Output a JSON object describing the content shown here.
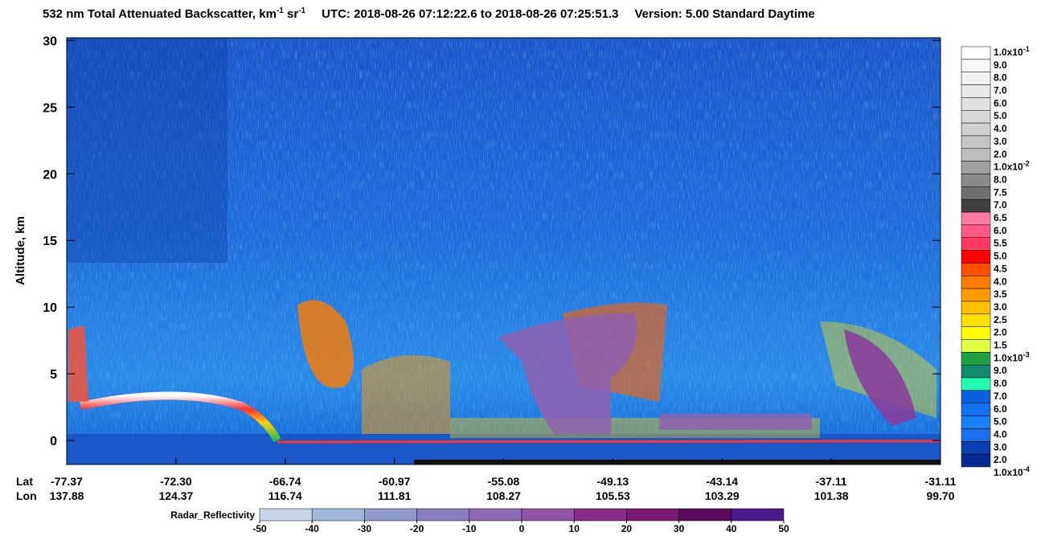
{
  "chart_data": {
    "type": "heatmap",
    "title": {
      "main": "532 nm Total Attenuated Backscatter, km",
      "sup1": "-1",
      "mid": " sr",
      "sup2": "-1",
      "utc": "UTC:  2018-08-26 07:12:22.6  to  2018-08-26 07:25:51.3",
      "version": "Version: 5.00  Standard  Daytime"
    },
    "y_label": "Altitude, km",
    "ylim": [
      -1.8,
      30.2
    ],
    "yticks": [
      0,
      5,
      10,
      15,
      20,
      25,
      30
    ],
    "x_row_labels": [
      "Lat",
      "Lon"
    ],
    "lat": [
      "-77.37",
      "-72.30",
      "-66.74",
      "-60.97",
      "-55.08",
      "-49.13",
      "-43.14",
      "-37.11",
      "-31.11"
    ],
    "lon": [
      "137.88",
      "124.37",
      "116.74",
      "111.81",
      "108.27",
      "105.53",
      "103.29",
      "101.38",
      "99.70"
    ],
    "colorbar": {
      "labels": [
        {
          "text": "1.0x10",
          "sup": "-1"
        },
        {
          "text": "9.0"
        },
        {
          "text": "8.0"
        },
        {
          "text": "7.0"
        },
        {
          "text": "6.0"
        },
        {
          "text": "5.0"
        },
        {
          "text": "4.0"
        },
        {
          "text": "3.0"
        },
        {
          "text": "2.0"
        },
        {
          "text": "1.0x10",
          "sup": "-2"
        },
        {
          "text": "8.0"
        },
        {
          "text": "7.5"
        },
        {
          "text": "7.0"
        },
        {
          "text": "6.5"
        },
        {
          "text": "6.0"
        },
        {
          "text": "5.5"
        },
        {
          "text": "5.0"
        },
        {
          "text": "4.5"
        },
        {
          "text": "4.0"
        },
        {
          "text": "3.5"
        },
        {
          "text": "3.0"
        },
        {
          "text": "2.5"
        },
        {
          "text": "2.0"
        },
        {
          "text": "1.5"
        },
        {
          "text": "1.0x10",
          "sup": "-3"
        },
        {
          "text": "9.0"
        },
        {
          "text": "8.0"
        },
        {
          "text": "7.0"
        },
        {
          "text": "6.0"
        },
        {
          "text": "5.0"
        },
        {
          "text": "4.0"
        },
        {
          "text": "3.0"
        },
        {
          "text": "2.0"
        },
        {
          "text": "1.0x10",
          "sup": "-4"
        }
      ],
      "colors": [
        "#ffffff",
        "#f8f8f8",
        "#f0f0f0",
        "#e8e8e8",
        "#e0e0e0",
        "#d8d8d8",
        "#d0d0d0",
        "#c6c6c6",
        "#bcbcbc",
        "#a0a0a0",
        "#8a8a8a",
        "#707070",
        "#404040",
        "#ff7aa0",
        "#ff5a80",
        "#ff3a60",
        "#ff0000",
        "#ff5000",
        "#ff7a00",
        "#ff9a00",
        "#ffc000",
        "#ffe000",
        "#ffff00",
        "#e0ff40",
        "#20a040",
        "#108a70",
        "#20ffb0",
        "#0a60e0",
        "#1070f0",
        "#1a80f8",
        "#1a70e8",
        "#0a40b0",
        "#082a90"
      ]
    },
    "radar_bar": {
      "title": "Radar_Reflectivity",
      "ticks": [
        -50,
        -40,
        -30,
        -20,
        -10,
        0,
        10,
        20,
        30,
        40,
        50
      ],
      "colors": [
        "#c6d4e8",
        "#9fb7d8",
        "#8f9ccc",
        "#8a7cc0",
        "#8c6bb5",
        "#9055a8",
        "#8a2a8a",
        "#7a1a72",
        "#5a0a5a",
        "#4b1a8a"
      ]
    }
  }
}
